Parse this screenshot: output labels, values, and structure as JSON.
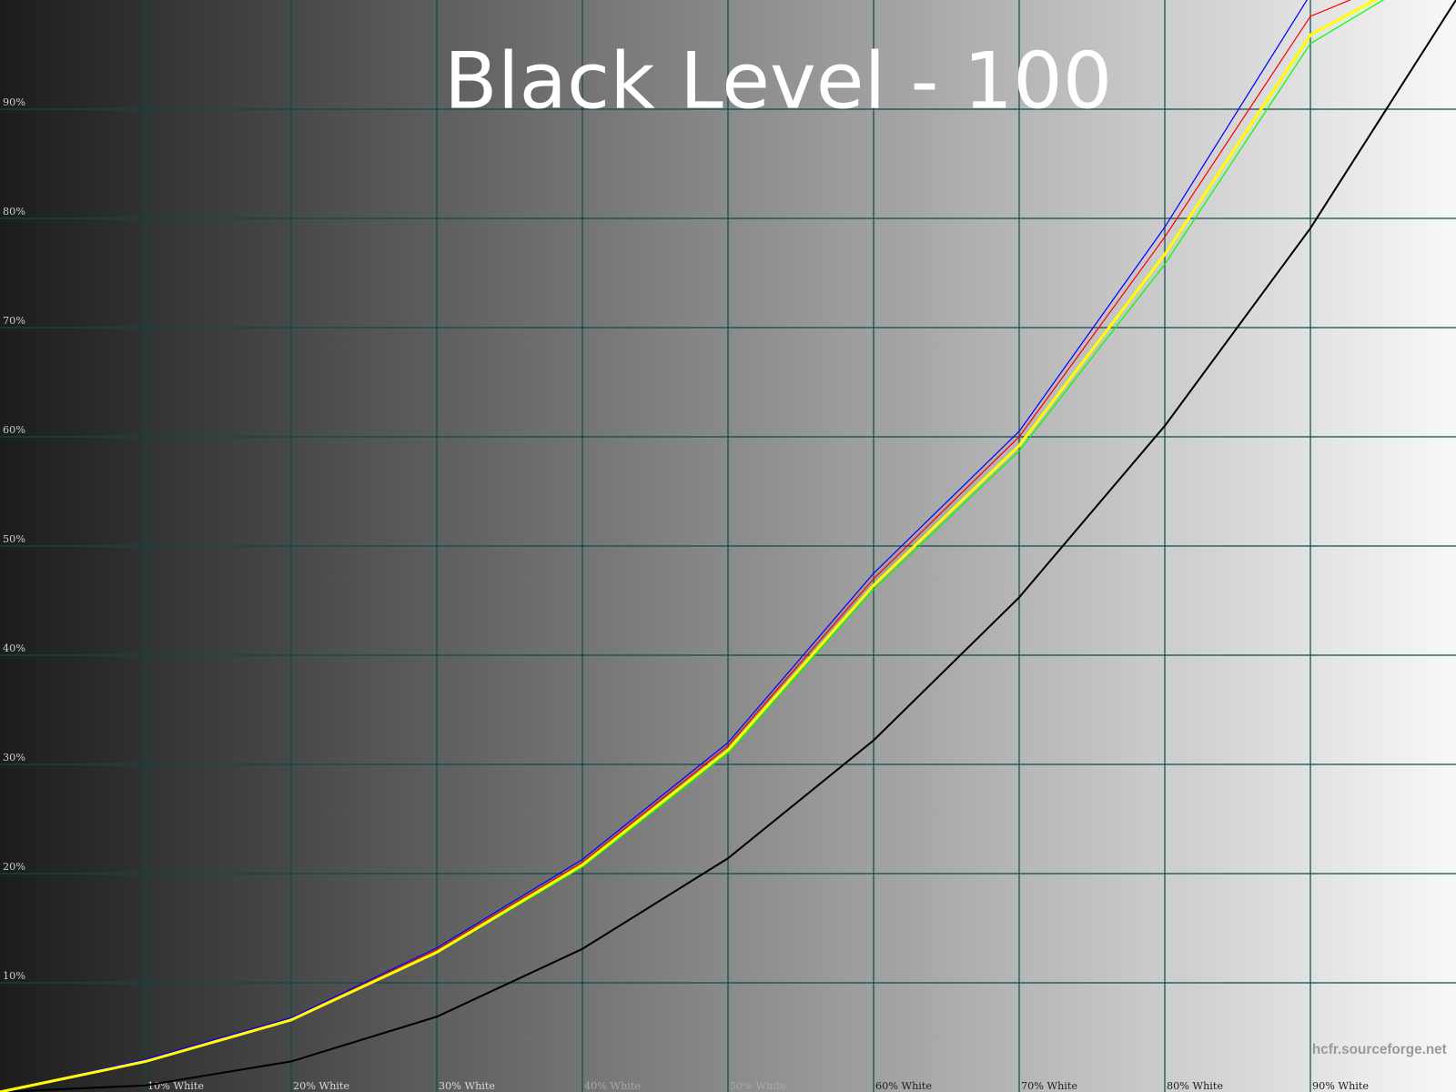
{
  "chart_data": {
    "type": "line",
    "title": "Black Level - 100",
    "watermark": "hcfr.sourceforge.net",
    "x": [
      0,
      10,
      20,
      30,
      40,
      50,
      60,
      70,
      80,
      90,
      100
    ],
    "x_tick_labels": [
      "10% White",
      "20% White",
      "30% White",
      "40% White",
      "50% White",
      "60% White",
      "70% White",
      "80% White",
      "90% White"
    ],
    "y_tick_labels": [
      "10%",
      "20%",
      "30%",
      "40%",
      "50%",
      "60%",
      "70%",
      "80%",
      "90%"
    ],
    "xlim": [
      0,
      100
    ],
    "ylim": [
      0,
      100
    ],
    "grid": true,
    "grid_color": "#0e4a50",
    "background": "grayscale ramp, dark to light left to right",
    "series": [
      {
        "color": "#0000ff",
        "values": [
          0,
          3.0,
          6.8,
          13.2,
          21.3,
          32.0,
          47.5,
          60.5,
          79.2,
          100.5,
          104
        ]
      },
      {
        "color": "#ff0000",
        "values": [
          0,
          3.0,
          6.7,
          13.0,
          21.0,
          31.7,
          47.0,
          60.0,
          78.3,
          98.5,
          104
        ]
      },
      {
        "color": "#ffff00",
        "values": [
          0,
          2.8,
          6.6,
          12.8,
          20.8,
          31.3,
          46.4,
          59.2,
          76.7,
          96.8,
          104
        ]
      },
      {
        "color": "#00ff00",
        "values": [
          0,
          2.8,
          6.6,
          12.7,
          20.6,
          31.0,
          46.0,
          58.7,
          75.8,
          96.0,
          104
        ]
      },
      {
        "color": "#000000",
        "values": [
          0,
          0.6,
          2.8,
          6.9,
          13.1,
          21.4,
          32.2,
          45.3,
          61.0,
          79.1,
          100
        ]
      }
    ]
  }
}
